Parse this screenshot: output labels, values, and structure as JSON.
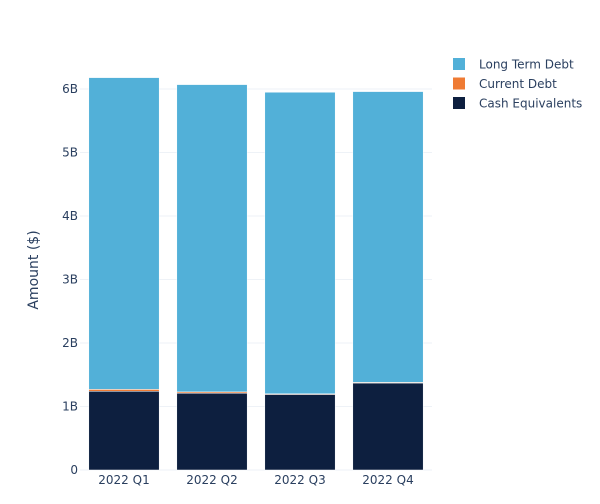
{
  "chart_data": {
    "type": "bar",
    "stacked": true,
    "title": "",
    "xlabel": "",
    "ylabel": "Amount ($)",
    "categories": [
      "2022 Q1",
      "2022 Q2",
      "2022 Q3",
      "2022 Q4"
    ],
    "ylim": [
      0,
      6.3
    ],
    "yticks": [
      {
        "value": 0,
        "label": "0"
      },
      {
        "value": 1,
        "label": "1B"
      },
      {
        "value": 2,
        "label": "2B"
      },
      {
        "value": 3,
        "label": "3B"
      },
      {
        "value": 4,
        "label": "4B"
      },
      {
        "value": 5,
        "label": "5B"
      },
      {
        "value": 6,
        "label": "6B"
      }
    ],
    "series": [
      {
        "name": "Cash Equivalents",
        "color": "#0d1f3f",
        "values": [
          1.24,
          1.21,
          1.19,
          1.37
        ]
      },
      {
        "name": "Current Debt",
        "color": "#ef7b34",
        "values": [
          0.03,
          0.02,
          0.01,
          0.01
        ]
      },
      {
        "name": "Long Term Debt",
        "color": "#52b0d8",
        "values": [
          4.91,
          4.84,
          4.75,
          4.58
        ]
      }
    ],
    "legend": {
      "position": "top-right",
      "order": [
        "Long Term Debt",
        "Current Debt",
        "Cash Equivalents"
      ]
    },
    "grid": true,
    "colors": {
      "text": "#2a3f5f",
      "grid": "#eef2f7",
      "axis_line": "#eef2f7"
    }
  }
}
